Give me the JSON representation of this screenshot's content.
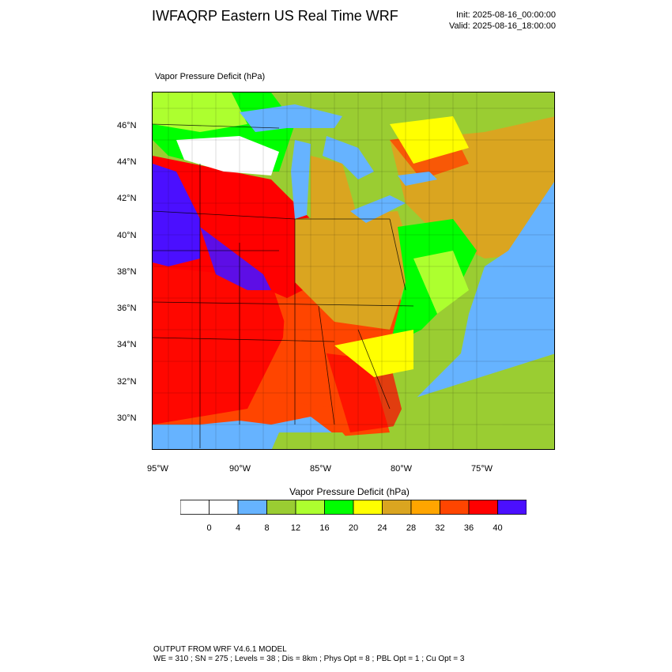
{
  "title": "IWFAQRP Eastern US Real Time WRF",
  "init_time": "Init: 2025-08-16_00:00:00",
  "valid_time": "Valid: 2025-08-16_18:00:00",
  "field_label": "Vapor Pressure Deficit   (hPa)",
  "map": {
    "latitude_labels": [
      "46°N",
      "44°N",
      "42°N",
      "40°N",
      "38°N",
      "36°N",
      "34°N",
      "32°N",
      "30°N"
    ],
    "longitude_labels": [
      "95°W",
      "90°W",
      "85°W",
      "80°W",
      "75°W"
    ],
    "colors": {
      "ocean_lakes": "#66b3ff",
      "low_land": "#9acd32",
      "water_background_east": "#66b3ff"
    }
  },
  "colorbar": {
    "title": "Vapor Pressure Deficit  (hPa)",
    "tick_labels": [
      "0",
      "4",
      "8",
      "12",
      "16",
      "20",
      "24",
      "28",
      "32",
      "36",
      "40"
    ],
    "colors": [
      "#ffffff",
      "#ffffff",
      "#66b3ff",
      "#9acd32",
      "#adff2f",
      "#00ff00",
      "#ffff00",
      "#daa520",
      "#ffa500",
      "#ff4500",
      "#ff0000",
      "#4b0fff"
    ]
  },
  "footer": {
    "line1": "OUTPUT FROM WRF V4.6.1 MODEL",
    "line2": "WE = 310 ; SN = 275 ; Levels = 38 ; Dis = 8km ; Phys Opt = 8 ; PBL Opt = 1 ; Cu Opt = 3"
  }
}
